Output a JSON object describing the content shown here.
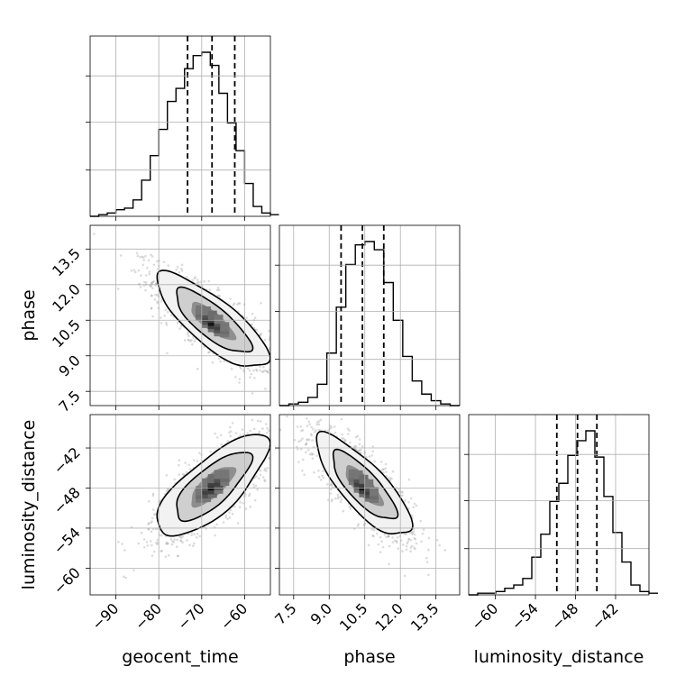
{
  "chart_data": {
    "type": "corner",
    "parameters": [
      "geocent_time",
      "phase",
      "luminosity_distance"
    ],
    "ranges": {
      "geocent_time": [
        -96,
        -54
      ],
      "phase": [
        6.9,
        14.5
      ],
      "luminosity_distance": [
        -64,
        -37
      ]
    },
    "ticks": {
      "geocent_time": [
        -90,
        -80,
        -70,
        -60
      ],
      "phase": [
        7.5,
        9.0,
        10.5,
        12.0,
        13.5
      ],
      "luminosity_distance": [
        -60,
        -54,
        -48,
        -42
      ]
    },
    "tick_labels": {
      "geocent_time": [
        "−90",
        "−80",
        "−70",
        "−60"
      ],
      "phase": [
        "7.5",
        "9.0",
        "10.5",
        "12.0",
        "13.5"
      ],
      "luminosity_distance": [
        "−60",
        "−54",
        "−48",
        "−42"
      ]
    },
    "axis_labels": {
      "bottom": [
        "geocent_time",
        "phase",
        "luminosity_distance"
      ],
      "left": [
        "phase",
        "luminosity_distance"
      ]
    },
    "quantiles": {
      "geocent_time": [
        -73.3,
        -67.6,
        -62.3
      ],
      "phase": [
        9.5,
        10.4,
        11.3
      ],
      "luminosity_distance": [
        -50.8,
        -47.7,
        -44.8
      ]
    },
    "histograms": {
      "geocent_time": {
        "bin_start": -96,
        "bin_width": 2,
        "counts": [
          0,
          0.01,
          0.02,
          0.04,
          0.05,
          0.1,
          0.22,
          0.37,
          0.53,
          0.7,
          0.78,
          0.9,
          0.98,
          1.0,
          0.92,
          0.75,
          0.57,
          0.4,
          0.2,
          0.06,
          0.02,
          0.01
        ]
      },
      "phase": {
        "bin_start": 6.9,
        "bin_width": 0.4,
        "counts": [
          0,
          0.01,
          0.02,
          0.05,
          0.13,
          0.32,
          0.6,
          0.86,
          0.98,
          1.0,
          0.95,
          0.75,
          0.52,
          0.3,
          0.15,
          0.07,
          0.03,
          0.01,
          0
        ]
      },
      "luminosity_distance": {
        "bin_start": -64,
        "bin_width": 1.35,
        "counts": [
          0,
          0.01,
          0.01,
          0.02,
          0.04,
          0.06,
          0.1,
          0.23,
          0.37,
          0.57,
          0.68,
          0.85,
          0.94,
          1.0,
          0.84,
          0.6,
          0.38,
          0.2,
          0.06,
          0.02,
          0.01
        ]
      }
    },
    "pairs": [
      {
        "x": "geocent_time",
        "y": "phase",
        "mean": [
          -67.5,
          10.45
        ],
        "sd": [
          6.5,
          1.0
        ],
        "corr": -0.8
      },
      {
        "x": "geocent_time",
        "y": "luminosity_distance",
        "mean": [
          -67.5,
          -47.7
        ],
        "sd": [
          6.5,
          3.8
        ],
        "corr": 0.75
      },
      {
        "x": "phase",
        "y": "luminosity_distance",
        "mean": [
          10.45,
          -47.7
        ],
        "sd": [
          1.0,
          3.8
        ],
        "corr": -0.8
      }
    ],
    "grid": true
  }
}
